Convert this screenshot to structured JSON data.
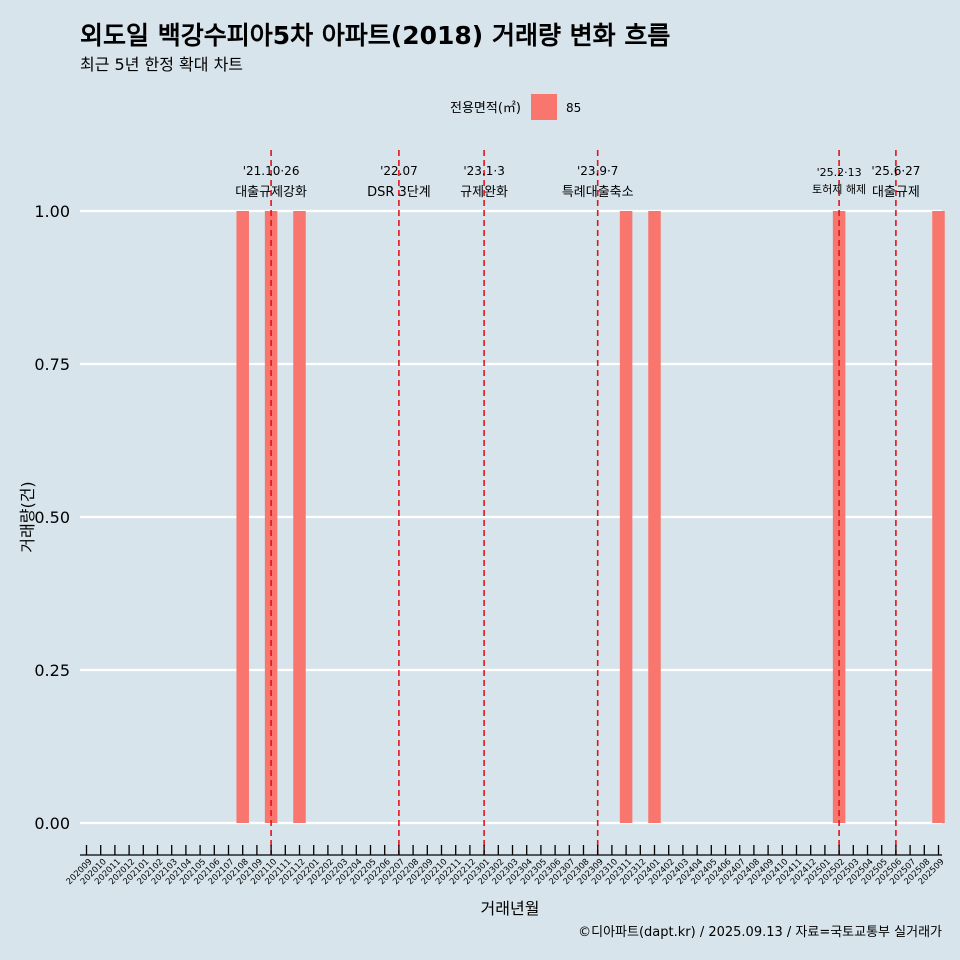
{
  "chart_data": {
    "type": "bar",
    "title": "외도일 백강수피아5차 아파트(2018) 거래량 변화 흐름",
    "subtitle": "최근 5년 한정 확대 차트",
    "xlabel": "거래년월",
    "ylabel": "거래량(건)",
    "ylim": [
      0,
      1.0
    ],
    "yticks": [
      0.0,
      0.25,
      0.5,
      0.75,
      1.0
    ],
    "ytick_labels": [
      "0.00",
      "0.25",
      "0.50",
      "0.75",
      "1.00"
    ],
    "legend": {
      "title": "전용면적(㎡)",
      "placement": "top",
      "entries": [
        {
          "name": "85",
          "color": "#f8766d"
        }
      ]
    },
    "grid": true,
    "categories": [
      "202009",
      "202010",
      "202011",
      "202012",
      "202101",
      "202102",
      "202103",
      "202104",
      "202105",
      "202106",
      "202107",
      "202108",
      "202109",
      "202110",
      "202111",
      "202112",
      "202201",
      "202202",
      "202203",
      "202204",
      "202205",
      "202206",
      "202207",
      "202208",
      "202209",
      "202210",
      "202211",
      "202212",
      "202301",
      "202302",
      "202303",
      "202304",
      "202305",
      "202306",
      "202307",
      "202308",
      "202309",
      "202310",
      "202311",
      "202312",
      "202401",
      "202402",
      "202403",
      "202404",
      "202405",
      "202406",
      "202407",
      "202408",
      "202409",
      "202410",
      "202411",
      "202412",
      "202501",
      "202502",
      "202503",
      "202504",
      "202505",
      "202506",
      "202507",
      "202508",
      "202509"
    ],
    "series": [
      {
        "name": "85",
        "color": "#f8766d",
        "values": [
          0,
          0,
          0,
          0,
          0,
          0,
          0,
          0,
          0,
          0,
          0,
          1,
          0,
          1,
          0,
          1,
          0,
          0,
          0,
          0,
          0,
          0,
          0,
          0,
          0,
          0,
          0,
          0,
          0,
          0,
          0,
          0,
          0,
          0,
          0,
          0,
          0,
          0,
          1,
          0,
          1,
          0,
          0,
          0,
          0,
          0,
          0,
          0,
          0,
          0,
          0,
          0,
          0,
          1,
          0,
          0,
          0,
          0,
          0,
          0,
          1
        ]
      }
    ],
    "annotations": [
      {
        "x": "202110",
        "date": "'21.10·26",
        "label": "대출규제강화"
      },
      {
        "x": "202207",
        "date": "'22.07",
        "label": "DSR 3단계"
      },
      {
        "x": "202301",
        "date": "'23.1·3",
        "label": "규제완화"
      },
      {
        "x": "202309",
        "date": "'23.9·7",
        "label": "특례대출축소"
      },
      {
        "x": "202502",
        "date": "'25.2·13",
        "label": "토허제 해제"
      },
      {
        "x": "202506",
        "date": "'25.6·27",
        "label": "대출규제"
      }
    ],
    "caption": "©디아파트(dapt.kr) / 2025.09.13 / 자료=국토교통부 실거래가"
  },
  "colors": {
    "background": "#d7e4ec",
    "grid": "#ffffff",
    "event_line": "#e8121a",
    "text": "#000000"
  }
}
